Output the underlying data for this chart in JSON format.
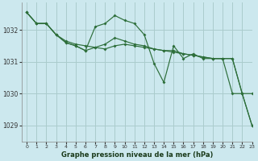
{
  "bg_color": "#cce8ee",
  "grid_color": "#aacccc",
  "line_color": "#2d6e3a",
  "title": "Graphe pression niveau de la mer (hPa)",
  "xlim": [
    -0.5,
    23
  ],
  "ylim": [
    1028.5,
    1032.85
  ],
  "yticks": [
    1029,
    1030,
    1031,
    1032
  ],
  "xticks": [
    0,
    1,
    2,
    3,
    4,
    5,
    6,
    7,
    8,
    9,
    10,
    11,
    12,
    13,
    14,
    15,
    16,
    17,
    18,
    19,
    20,
    21,
    22,
    23
  ],
  "series1": [
    1032.55,
    1032.2,
    1032.2,
    1031.85,
    1031.65,
    1031.55,
    1031.5,
    1031.45,
    1031.4,
    1031.5,
    1031.55,
    1031.5,
    1031.45,
    1031.4,
    1031.35,
    1031.3,
    1031.25,
    1031.2,
    1031.15,
    1031.1,
    1031.1,
    1031.1,
    1030.0,
    1029.0
  ],
  "series2": [
    1032.55,
    1032.2,
    1032.2,
    1031.85,
    1031.6,
    1031.5,
    1031.35,
    1032.1,
    1032.2,
    1032.45,
    1032.3,
    1032.2,
    1031.85,
    1030.95,
    1030.35,
    1031.5,
    1031.1,
    1031.25,
    1031.1,
    1031.1,
    1031.1,
    1030.0,
    1030.0,
    1029.0
  ],
  "series3": [
    1032.55,
    1032.2,
    1032.2,
    1031.85,
    1031.6,
    1031.5,
    1031.35,
    1031.45,
    1031.55,
    1031.75,
    1031.65,
    1031.55,
    1031.5,
    1031.4,
    1031.35,
    1031.35,
    1031.25,
    1031.2,
    1031.15,
    1031.1,
    1031.1,
    1031.1,
    1030.0,
    1030.0
  ]
}
